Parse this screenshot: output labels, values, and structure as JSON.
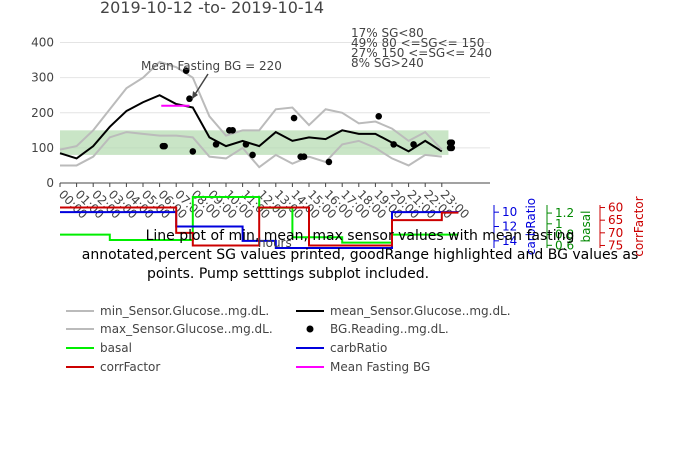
{
  "chart_data": [
    {
      "type": "line",
      "title": "2019-10-12 -to- 2019-10-14",
      "x_ticks": [
        "00:00",
        "01:00",
        "02:00",
        "03:00",
        "04:00",
        "05:00",
        "06:00",
        "07:00",
        "08:00",
        "09:00",
        "10:00",
        "11:00",
        "12:00",
        "13:00",
        "14:00",
        "15:00",
        "16:00",
        "17:00",
        "18:00",
        "19:00",
        "20:00",
        "21:00",
        "22:00",
        "23:00"
      ],
      "ylim": [
        0,
        450
      ],
      "y_ticks": [
        0,
        100,
        200,
        300,
        400
      ],
      "good_range": [
        80,
        150
      ],
      "series": [
        {
          "name": "min_Sensor.Glucose..mg.dL.",
          "color": "#bbbbbb",
          "x": [
            0,
            1,
            2,
            3,
            4,
            5,
            6,
            7,
            8,
            9,
            10,
            11,
            12,
            13,
            14,
            15,
            16,
            17,
            18,
            19,
            20,
            21,
            22,
            23
          ],
          "values": [
            50,
            50,
            75,
            130,
            145,
            140,
            135,
            135,
            130,
            75,
            70,
            100,
            45,
            80,
            55,
            75,
            60,
            110,
            120,
            100,
            70,
            50,
            80,
            75
          ]
        },
        {
          "name": "mean_Sensor.Glucose..mg.dL.",
          "color": "#000000",
          "x": [
            0,
            1,
            2,
            3,
            4,
            5,
            6,
            7,
            8,
            9,
            10,
            11,
            12,
            13,
            14,
            15,
            16,
            17,
            18,
            19,
            20,
            21,
            22,
            23
          ],
          "values": [
            85,
            70,
            105,
            160,
            205,
            230,
            250,
            225,
            215,
            130,
            105,
            120,
            105,
            145,
            120,
            130,
            125,
            150,
            140,
            140,
            115,
            90,
            120,
            90
          ]
        },
        {
          "name": "max_Sensor.Glucose..mg.dL.",
          "color": "#bbbbbb",
          "x": [
            0,
            1,
            2,
            3,
            4,
            5,
            6,
            7,
            8,
            9,
            10,
            11,
            12,
            13,
            14,
            15,
            16,
            17,
            18,
            19,
            20,
            21,
            22,
            23
          ],
          "values": [
            95,
            105,
            150,
            210,
            270,
            300,
            345,
            330,
            300,
            190,
            135,
            150,
            150,
            210,
            215,
            165,
            210,
            200,
            170,
            175,
            155,
            120,
            145,
            95
          ]
        },
        {
          "name": "BG.Reading..mg.dL.",
          "color": "#000000",
          "x": [
            6.2,
            6.3,
            7.6,
            7.8,
            8.0,
            9.4,
            10.2,
            10.4,
            11.2,
            11.6,
            14.1,
            14.5,
            14.7,
            16.2,
            19.2,
            20.1,
            21.3,
            23.5,
            23.6,
            23.5,
            23.6
          ],
          "values": [
            105,
            105,
            320,
            240,
            90,
            110,
            150,
            150,
            110,
            80,
            185,
            75,
            75,
            60,
            190,
            110,
            110,
            115,
            115,
            100,
            100
          ]
        },
        {
          "name": "Mean Fasting BG",
          "color": "#ff00ff",
          "x": [
            6.1,
            7.8
          ],
          "values": [
            220,
            220
          ]
        }
      ],
      "annotations": {
        "mean_fasting": "Mean Fasting BG = 220",
        "percents": [
          "17% SG<80",
          "49% 80 <=SG<= 150",
          "27% 150 <=SG<= 240",
          "8% SG>240"
        ]
      },
      "legend_placement": "bottom"
    },
    {
      "type": "line",
      "subplot": "pump settings",
      "series": [
        {
          "name": "basal",
          "color": "#00ee00",
          "axis": "basal",
          "x": [
            0,
            3,
            8,
            12,
            14,
            17,
            20,
            24
          ],
          "values": [
            0.8,
            0.7,
            1.5,
            1.3,
            0.75,
            0.65,
            0.8,
            0.8
          ]
        },
        {
          "name": "carbRatio",
          "color": "#0000dd",
          "axis": "carbRatio",
          "x": [
            0,
            5,
            7,
            11,
            13,
            20,
            23,
            24
          ],
          "values": [
            10,
            10,
            12,
            14,
            15,
            10,
            10,
            10
          ]
        },
        {
          "name": "corrFactor",
          "color": "#cc0000",
          "axis": "corrFactor",
          "x": [
            0,
            5,
            7,
            8,
            12,
            15,
            20,
            23,
            24
          ],
          "values": [
            60,
            60,
            70,
            75,
            60,
            75,
            65,
            62,
            62
          ]
        }
      ],
      "axes": {
        "carbRatio": {
          "title": "carbRatio",
          "ticks": [
            10,
            12,
            14
          ],
          "color": "#0000dd"
        },
        "basal": {
          "title": "basal",
          "ticks": [
            1.2,
            1.0,
            0.8,
            0.6
          ],
          "color": "#008800"
        },
        "corrFactor": {
          "title": "corrFactor",
          "ticks": [
            60,
            65,
            70,
            75
          ],
          "color": "#cc0000"
        }
      },
      "xlabel": "hours"
    }
  ],
  "caption": [
    "Line plot of min, mean, max sensor values with mean fasting",
    "annotated,percent SG values printed, goodRange highlighted and BG values as",
    "points.  Pump setttings subplot included."
  ]
}
